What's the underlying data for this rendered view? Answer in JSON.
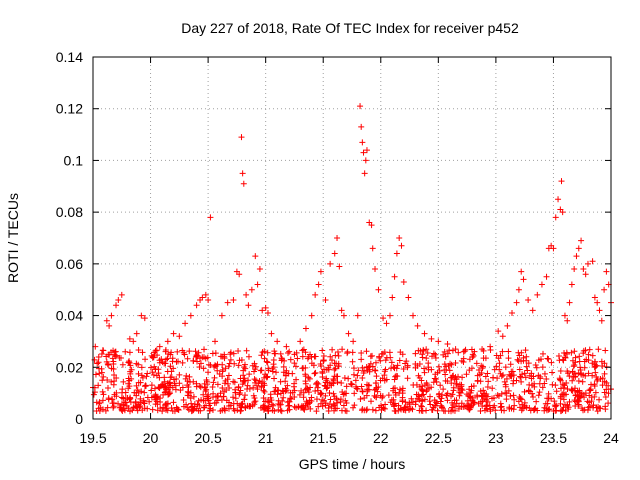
{
  "chart_data": {
    "type": "scatter",
    "title": "Day 227 of 2018, Rate Of TEC Index for receiver p452",
    "xlabel": "GPS time / hours",
    "ylabel": "ROTI / TECUs",
    "xlim": [
      19.5,
      24
    ],
    "ylim": [
      0,
      0.14
    ],
    "x_ticks": [
      19.5,
      20,
      20.5,
      21,
      21.5,
      22,
      22.5,
      23,
      23.5,
      24
    ],
    "x_tick_labels": [
      "19.5",
      "20",
      "20.5",
      "21",
      "21.5",
      "22",
      "22.5",
      "23",
      "23.5",
      "24"
    ],
    "y_ticks": [
      0,
      0.02,
      0.04,
      0.06,
      0.08,
      0.1,
      0.12,
      0.14
    ],
    "y_tick_labels": [
      "0",
      "0.02",
      "0.04",
      "0.06",
      "0.08",
      "0.1",
      "0.12",
      "0.14"
    ],
    "grid": true,
    "marker": "+",
    "marker_color": "#ff0000",
    "series": [
      {
        "name": "ROTI",
        "points": [
          [
            19.52,
            0.028
          ],
          [
            19.55,
            0.024
          ],
          [
            19.58,
            0.015
          ],
          [
            19.62,
            0.038
          ],
          [
            19.64,
            0.036
          ],
          [
            19.66,
            0.04
          ],
          [
            19.7,
            0.044
          ],
          [
            19.72,
            0.046
          ],
          [
            19.75,
            0.048
          ],
          [
            19.78,
            0.026
          ],
          [
            19.82,
            0.031
          ],
          [
            19.85,
            0.03
          ],
          [
            19.88,
            0.033
          ],
          [
            19.92,
            0.04
          ],
          [
            19.95,
            0.039
          ],
          [
            20.02,
            0.024
          ],
          [
            20.08,
            0.028
          ],
          [
            20.15,
            0.03
          ],
          [
            20.2,
            0.033
          ],
          [
            20.25,
            0.032
          ],
          [
            20.3,
            0.037
          ],
          [
            20.35,
            0.04
          ],
          [
            20.4,
            0.044
          ],
          [
            20.43,
            0.046
          ],
          [
            20.45,
            0.047
          ],
          [
            20.48,
            0.048
          ],
          [
            20.5,
            0.046
          ],
          [
            20.52,
            0.078
          ],
          [
            20.56,
            0.03
          ],
          [
            20.62,
            0.04
          ],
          [
            20.67,
            0.045
          ],
          [
            20.72,
            0.046
          ],
          [
            20.75,
            0.057
          ],
          [
            20.77,
            0.056
          ],
          [
            20.79,
            0.109
          ],
          [
            20.8,
            0.095
          ],
          [
            20.81,
            0.091
          ],
          [
            20.83,
            0.048
          ],
          [
            20.85,
            0.044
          ],
          [
            20.88,
            0.05
          ],
          [
            20.91,
            0.063
          ],
          [
            20.93,
            0.052
          ],
          [
            20.95,
            0.058
          ],
          [
            20.97,
            0.042
          ],
          [
            21.0,
            0.043
          ],
          [
            21.02,
            0.041
          ],
          [
            21.05,
            0.033
          ],
          [
            21.1,
            0.03
          ],
          [
            21.18,
            0.028
          ],
          [
            21.25,
            0.025
          ],
          [
            21.3,
            0.03
          ],
          [
            21.35,
            0.035
          ],
          [
            21.4,
            0.04
          ],
          [
            21.43,
            0.048
          ],
          [
            21.46,
            0.052
          ],
          [
            21.48,
            0.057
          ],
          [
            21.52,
            0.046
          ],
          [
            21.56,
            0.06
          ],
          [
            21.6,
            0.064
          ],
          [
            21.62,
            0.07
          ],
          [
            21.64,
            0.059
          ],
          [
            21.66,
            0.042
          ],
          [
            21.68,
            0.04
          ],
          [
            21.72,
            0.033
          ],
          [
            21.76,
            0.03
          ],
          [
            21.8,
            0.04
          ],
          [
            21.82,
            0.121
          ],
          [
            21.83,
            0.113
          ],
          [
            21.84,
            0.107
          ],
          [
            21.85,
            0.103
          ],
          [
            21.86,
            0.095
          ],
          [
            21.87,
            0.1
          ],
          [
            21.88,
            0.104
          ],
          [
            21.9,
            0.076
          ],
          [
            21.92,
            0.075
          ],
          [
            21.93,
            0.066
          ],
          [
            21.95,
            0.058
          ],
          [
            21.98,
            0.05
          ],
          [
            22.02,
            0.039
          ],
          [
            22.05,
            0.037
          ],
          [
            22.08,
            0.04
          ],
          [
            22.1,
            0.047
          ],
          [
            22.12,
            0.055
          ],
          [
            22.14,
            0.064
          ],
          [
            22.16,
            0.07
          ],
          [
            22.18,
            0.067
          ],
          [
            22.2,
            0.053
          ],
          [
            22.24,
            0.047
          ],
          [
            22.28,
            0.04
          ],
          [
            22.32,
            0.036
          ],
          [
            22.38,
            0.033
          ],
          [
            22.44,
            0.031
          ],
          [
            22.5,
            0.03
          ],
          [
            22.58,
            0.029
          ],
          [
            22.65,
            0.027
          ],
          [
            22.72,
            0.026
          ],
          [
            22.8,
            0.025
          ],
          [
            22.88,
            0.027
          ],
          [
            22.95,
            0.028
          ],
          [
            23.02,
            0.034
          ],
          [
            23.06,
            0.032
          ],
          [
            23.1,
            0.036
          ],
          [
            23.14,
            0.041
          ],
          [
            23.18,
            0.045
          ],
          [
            23.2,
            0.05
          ],
          [
            23.22,
            0.057
          ],
          [
            23.24,
            0.054
          ],
          [
            23.28,
            0.046
          ],
          [
            23.32,
            0.042
          ],
          [
            23.36,
            0.048
          ],
          [
            23.4,
            0.052
          ],
          [
            23.44,
            0.055
          ],
          [
            23.46,
            0.066
          ],
          [
            23.48,
            0.067
          ],
          [
            23.5,
            0.066
          ],
          [
            23.52,
            0.078
          ],
          [
            23.54,
            0.085
          ],
          [
            23.56,
            0.081
          ],
          [
            23.57,
            0.092
          ],
          [
            23.58,
            0.08
          ],
          [
            23.6,
            0.04
          ],
          [
            23.62,
            0.038
          ],
          [
            23.64,
            0.045
          ],
          [
            23.66,
            0.052
          ],
          [
            23.68,
            0.058
          ],
          [
            23.7,
            0.063
          ],
          [
            23.72,
            0.066
          ],
          [
            23.74,
            0.069
          ],
          [
            23.76,
            0.058
          ],
          [
            23.78,
            0.056
          ],
          [
            23.8,
            0.06
          ],
          [
            23.84,
            0.061
          ],
          [
            23.86,
            0.047
          ],
          [
            23.88,
            0.045
          ],
          [
            23.9,
            0.042
          ],
          [
            23.92,
            0.038
          ],
          [
            23.94,
            0.05
          ],
          [
            23.96,
            0.057
          ],
          [
            23.98,
            0.052
          ],
          [
            24.0,
            0.045
          ]
        ],
        "background_band": {
          "description": "dense cluster of points filling the low ROTI range over the whole time span",
          "y_min": 0.003,
          "y_max": 0.027,
          "x_min": 19.5,
          "x_max": 24.0,
          "count": 1500
        }
      }
    ]
  }
}
